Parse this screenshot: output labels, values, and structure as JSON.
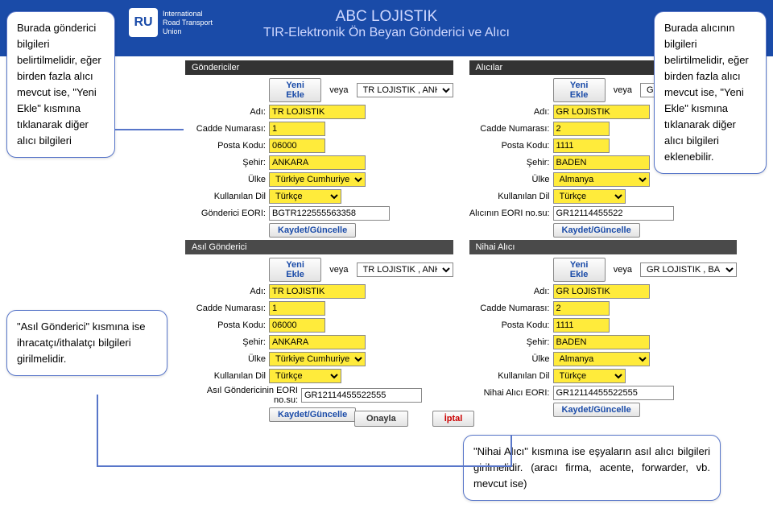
{
  "colors": {
    "header_bg": "#1a4ba8",
    "input_yellow": "#ffeb3b",
    "callout_border": "#5876c9",
    "link_blue": "#1a4ba8",
    "red": "#c00"
  },
  "header": {
    "logo_badge": "RU",
    "logo_line1": "International",
    "logo_line2": "Road Transport",
    "logo_line3": "Union",
    "title1": "ABC LOJISTIK",
    "title2": "TIR-Elektronik Ön Beyan Gönderici ve Alıcı"
  },
  "labels": {
    "yeni_ekle": "Yeni Ekle",
    "veya": "veya",
    "adi": "Adı:",
    "cadde": "Cadde Numarası:",
    "posta": "Posta Kodu:",
    "sehir": "Şehir:",
    "ulke": "Ülke",
    "dil": "Kullanılan Dil",
    "kaydet": "Kaydet/Güncelle",
    "onayla": "Onayla",
    "iptal": "İptal"
  },
  "sender": {
    "section": "Göndericiler",
    "eori_label": "Gönderici EORI:",
    "select": "TR LOJISTIK , ANKAR",
    "name": "TR LOJISTIK",
    "street": "1",
    "zip": "06000",
    "city": "ANKARA",
    "country": "Türkiye Cumhuriyeti",
    "lang": "Türkçe",
    "eori": "BGTR122555563358"
  },
  "receiver": {
    "section": "Alıcılar",
    "eori_label": "Alıcının EORI no.su:",
    "select": "GR LOJISTIK , BA",
    "name": "GR LOJISTIK",
    "street": "2",
    "zip": "1111",
    "city": "BADEN",
    "country": "Almanya",
    "lang": "Türkçe",
    "eori": "GR12114455522"
  },
  "main_sender": {
    "section": "Asıl Gönderici",
    "eori_label": "Asıl Göndericinin EORI no.su:",
    "select": "TR LOJISTIK , ANKAR",
    "name": "TR LOJISTIK",
    "street": "1",
    "zip": "06000",
    "city": "ANKARA",
    "country": "Türkiye Cumhuriyeti",
    "lang": "Türkçe",
    "eori": "GR12114455522555"
  },
  "final_receiver": {
    "section": "Nihai Alıcı",
    "eori_label": "Nihai Alıcı EORI:",
    "select": "GR LOJISTIK , BA",
    "name": "GR LOJISTIK",
    "street": "2",
    "zip": "1111",
    "city": "BADEN",
    "country": "Almanya",
    "lang": "Türkçe",
    "eori": "GR12114455522555"
  },
  "callouts": {
    "c1": "Burada gönderici bilgileri belirtilmelidir, eğer birden fazla alıcı mevcut ise, \"Yeni Ekle\" kısmına tıklanarak diğer alıcı bilgileri",
    "c2": "Burada alıcının bilgileri belirtilmelidir, eğer birden fazla alıcı mevcut ise, \"Yeni Ekle\" kısmına tıklanarak diğer alıcı bilgileri eklenebilir.",
    "c3": "\"Asıl Gönderici\" kısmına ise ihracatçı/ithalatçı bilgileri girilmelidir.",
    "c4": "\"Nihai Alıcı\" kısmına ise eşyaların asıl alıcı bilgileri girilmelidir. (aracı firma, acente, forwarder, vb. mevcut ise)"
  }
}
